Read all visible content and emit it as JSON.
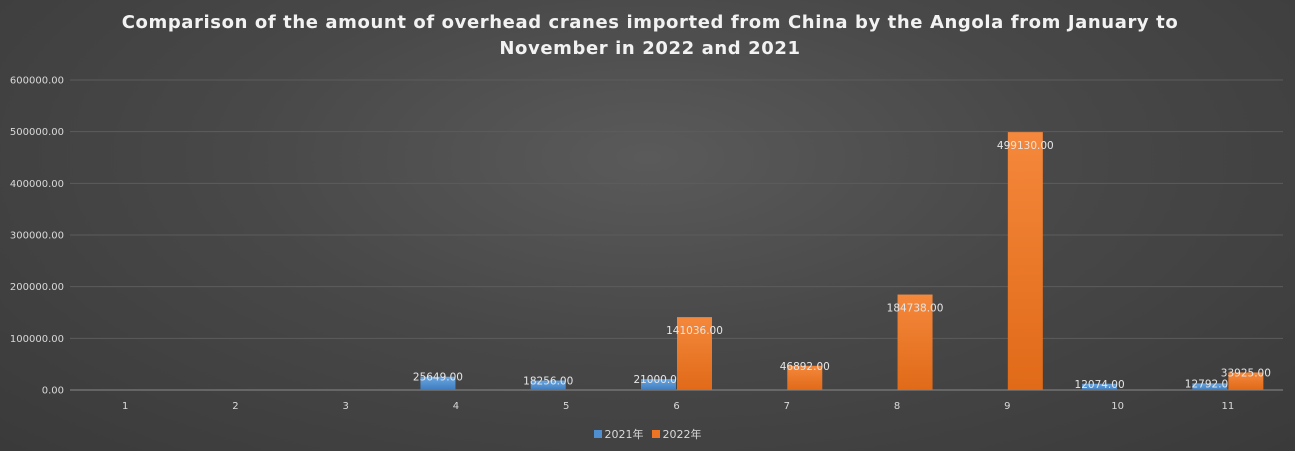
{
  "chart_data": {
    "type": "bar",
    "title": "Comparison of the amount of overhead cranes imported from China by the Angola from January to November in 2022 and 2021",
    "categories": [
      "1",
      "2",
      "3",
      "4",
      "5",
      "6",
      "7",
      "8",
      "9",
      "10",
      "11"
    ],
    "series": [
      {
        "name": "2021年",
        "color": "#4f8fd0",
        "values": [
          null,
          null,
          null,
          25649.0,
          18256.0,
          21000.0,
          null,
          null,
          null,
          12074.0,
          12792.0
        ],
        "labels": [
          "",
          "",
          "",
          "25649.00",
          "18256.00",
          "21000.00",
          "",
          "",
          "",
          "12074.00",
          "12792.00"
        ]
      },
      {
        "name": "2022年",
        "color": "#ed7325",
        "values": [
          null,
          null,
          null,
          null,
          null,
          141036.0,
          46892.0,
          184738.0,
          499130.0,
          null,
          33925.0
        ],
        "labels": [
          "",
          "",
          "",
          "",
          "",
          "141036.00",
          "46892.00",
          "184738.00",
          "499130.00",
          "",
          "33925.00"
        ]
      }
    ],
    "xlabel": "",
    "ylabel": "",
    "ylim": [
      0,
      600000
    ],
    "yticks": [
      "0.00",
      "100000.00",
      "200000.00",
      "300000.00",
      "400000.00",
      "500000.00",
      "600000.00"
    ],
    "grid": true,
    "legend_position": "bottom"
  }
}
